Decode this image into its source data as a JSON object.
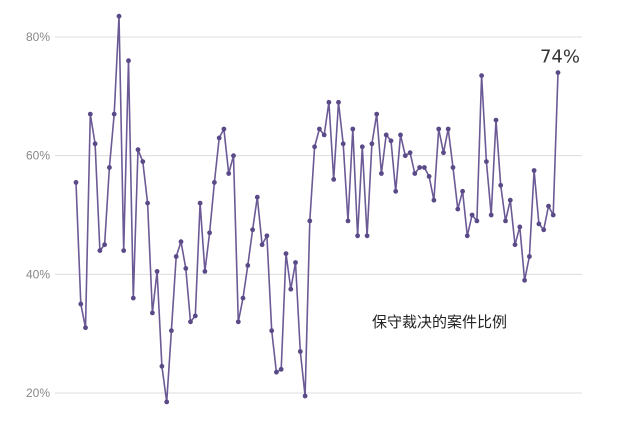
{
  "chart_data": {
    "type": "line",
    "title": "",
    "xlabel": "",
    "ylabel": "",
    "ylim": [
      15,
      84
    ],
    "yticks": [
      20,
      40,
      60,
      80
    ],
    "ytick_labels": [
      "20%",
      "40%",
      "60%",
      "80%"
    ],
    "grid": true,
    "series": [
      {
        "color": "#6b5a95",
        "values": [
          55.5,
          35,
          31,
          67,
          62,
          44,
          45,
          58,
          67,
          83.5,
          44,
          76,
          36,
          61,
          59,
          52,
          33.5,
          40.5,
          24.5,
          18.5,
          30.5,
          43,
          45.5,
          41,
          32,
          33,
          52,
          40.5,
          47,
          55.5,
          63,
          64.5,
          57,
          60,
          32,
          36,
          41.5,
          47.5,
          53,
          45,
          46.5,
          30.5,
          23.5,
          24,
          43.5,
          37.5,
          42,
          27,
          19.5,
          49,
          61.5,
          64.5,
          63.5,
          69,
          56,
          69,
          62,
          49,
          64.5,
          46.5,
          61.5,
          46.5,
          62,
          67,
          57,
          63.5,
          62.5,
          54,
          63.5,
          60,
          60.5,
          57,
          58,
          58,
          56.5,
          52.5,
          64.5,
          60.5,
          64.5,
          58,
          51,
          54,
          46.5,
          50,
          49,
          73.5,
          59,
          50,
          66,
          55,
          49,
          52.5,
          45,
          48,
          39,
          43,
          57.5,
          48.5,
          47.5,
          51.5,
          50,
          74
        ]
      }
    ],
    "end_label": "74%",
    "annotation": "保守裁决的案件比例"
  }
}
